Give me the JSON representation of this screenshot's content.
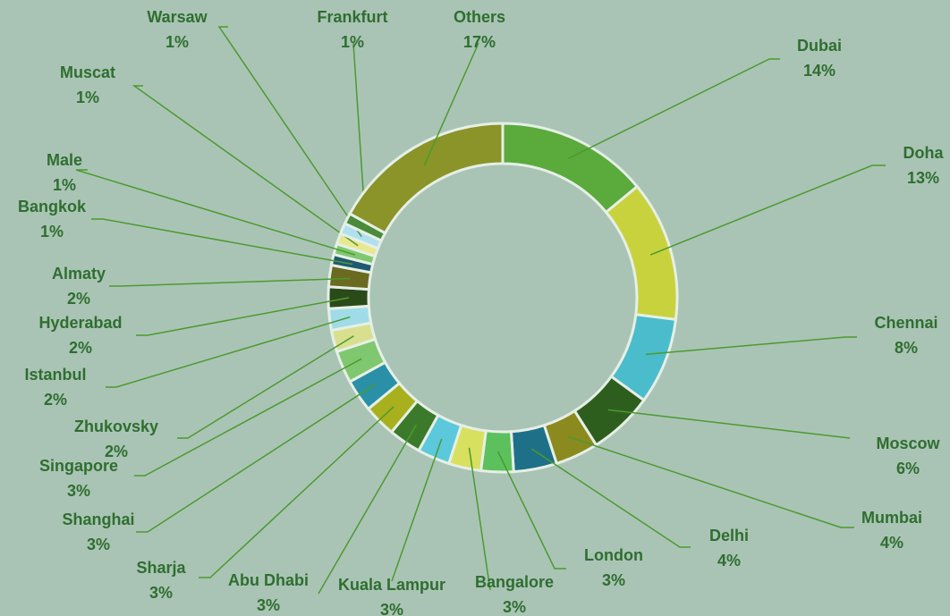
{
  "chart_data": {
    "type": "donut",
    "categories": [
      "Dubai",
      "Doha",
      "Chennai",
      "Moscow",
      "Mumbai",
      "Delhi",
      "London",
      "Bangalore",
      "Kuala Lampur",
      "Abu Dhabi",
      "Sharja",
      "Shanghai",
      "Singapore",
      "Zhukovsky",
      "Istanbul",
      "Hyderabad",
      "Almaty",
      "Bangkok",
      "Male",
      "Muscat",
      "Warsaw",
      "Frankfurt",
      "Others"
    ],
    "values": [
      14,
      13,
      8,
      6,
      4,
      4,
      3,
      3,
      3,
      3,
      3,
      3,
      3,
      2,
      2,
      2,
      2,
      1,
      1,
      1,
      1,
      1,
      17
    ],
    "value_labels": [
      "14%",
      "13%",
      "8%",
      "6%",
      "4%",
      "4%",
      "3%",
      "3%",
      "3%",
      "3%",
      "3%",
      "3%",
      "3%",
      "2%",
      "2%",
      "2%",
      "2%",
      "1%",
      "1%",
      "1%",
      "1%",
      "1%",
      "17%"
    ],
    "colors": [
      "#5aaa3c",
      "#c8d23c",
      "#4bbccc",
      "#2e5e1e",
      "#8a8a1e",
      "#1e7088",
      "#5cc05c",
      "#d8e060",
      "#5cc8dc",
      "#3a7a2a",
      "#a8b01e",
      "#2a90a8",
      "#80c870",
      "#d8e090",
      "#a0dce8",
      "#2a4a1a",
      "#6a6a20",
      "#1e5a70",
      "#80c870",
      "#e8e890",
      "#b0e0f0",
      "#4a8a3a",
      "#8a9428"
    ]
  }
}
